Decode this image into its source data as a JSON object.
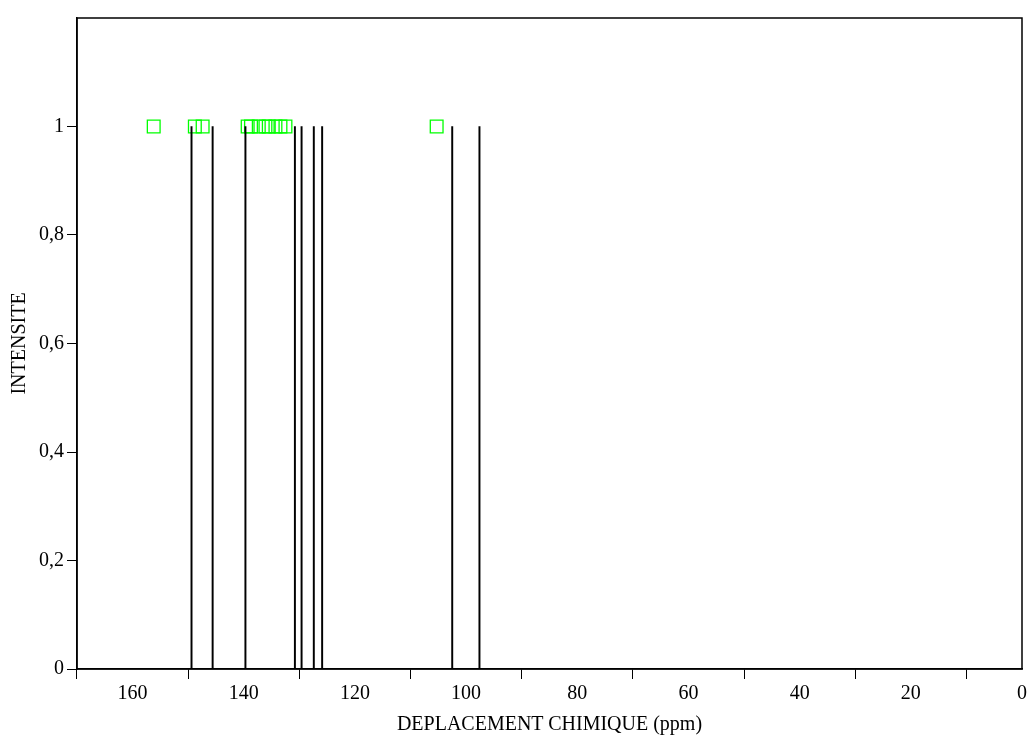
{
  "chart_data": {
    "type": "bar",
    "xlabel": "DEPLACEMENT CHIMIQUE (ppm)",
    "ylabel": "INTENSITE",
    "x": [
      149.4,
      145.6,
      139.7,
      130.8,
      129.6,
      127.4,
      125.9,
      102.5,
      97.6
    ],
    "series": [
      {
        "color": "#000000",
        "values": [
          1,
          1,
          1,
          1,
          1,
          1,
          1,
          1,
          1
        ]
      },
      {
        "type": "scatter",
        "color": "#00ff00",
        "marker": "square",
        "x": [
          156.2,
          148.8,
          147.4,
          139.3,
          138.7,
          137.3,
          136.1,
          135.5,
          134.3,
          133.4,
          132.5,
          105.3
        ],
        "values": [
          1,
          1,
          1,
          1,
          1,
          1,
          1,
          1,
          1,
          1,
          1,
          1
        ]
      }
    ],
    "xlim": [
      170,
      0
    ],
    "xticks": [
      160,
      140,
      120,
      100,
      80,
      60,
      40,
      20,
      0
    ],
    "ylim": [
      0,
      1.2
    ],
    "yticks": [
      0,
      {
        "value": 0.2,
        "label": "0,2"
      },
      {
        "value": 0.4,
        "label": "0,4"
      },
      {
        "value": 0.6,
        "label": "0,6"
      },
      {
        "value": 0.8,
        "label": "0,8"
      },
      1
    ],
    "grid": false,
    "legend": false
  }
}
